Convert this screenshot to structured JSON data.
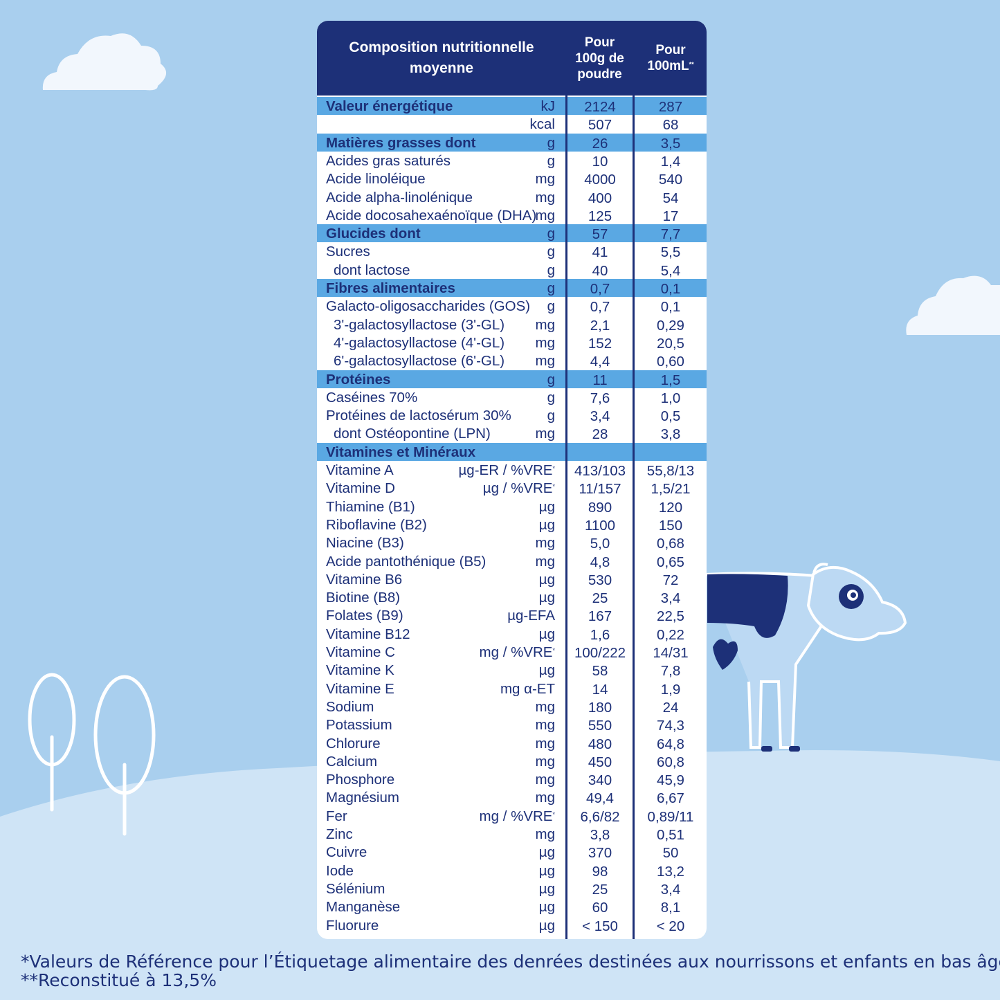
{
  "header": {
    "col_name": "Composition nutritionnelle moyenne",
    "col_powder": "Pour 100g de poudre",
    "col_ml": "Pour 100mL",
    "col_ml_mark": "**"
  },
  "rows": [
    {
      "name": "Valeur énergétique",
      "unit": "kJ",
      "v1": "2124",
      "v2": "287",
      "hl": true
    },
    {
      "name": "",
      "unit": "kcal",
      "v1": "507",
      "v2": "68"
    },
    {
      "name": "Matières grasses dont",
      "unit": "g",
      "v1": "26",
      "v2": "3,5",
      "hl": true
    },
    {
      "name": "Acides gras saturés",
      "unit": "g",
      "v1": "10",
      "v2": "1,4"
    },
    {
      "name": "Acide linoléique",
      "unit": "mg",
      "v1": "4000",
      "v2": "540"
    },
    {
      "name": "Acide alpha-linolénique",
      "unit": "mg",
      "v1": "400",
      "v2": "54"
    },
    {
      "name": "Acide docosahexaénoïque (DHA)",
      "unit": "mg",
      "v1": "125",
      "v2": "17"
    },
    {
      "name": "Glucides dont",
      "unit": "g",
      "v1": "57",
      "v2": "7,7",
      "hl": true
    },
    {
      "name": "Sucres",
      "unit": "g",
      "v1": "41",
      "v2": "5,5"
    },
    {
      "name": "dont lactose",
      "unit": "g",
      "v1": "40",
      "v2": "5,4",
      "indent": true
    },
    {
      "name": "Fibres alimentaires",
      "unit": "g",
      "v1": "0,7",
      "v2": "0,1",
      "hl": true
    },
    {
      "name": "Galacto-oligosaccharides (GOS)",
      "unit": "g",
      "v1": "0,7",
      "v2": "0,1"
    },
    {
      "name": "3'-galactosyllactose (3'-GL)",
      "unit": "mg",
      "v1": "2,1",
      "v2": "0,29",
      "indent": true
    },
    {
      "name": "4'-galactosyllactose (4'-GL)",
      "unit": "mg",
      "v1": "152",
      "v2": "20,5",
      "indent": true
    },
    {
      "name": "6'-galactosyllactose (6'-GL)",
      "unit": "mg",
      "v1": "4,4",
      "v2": "0,60",
      "indent": true
    },
    {
      "name": "Protéines",
      "unit": "g",
      "v1": "11",
      "v2": "1,5",
      "hl": true
    },
    {
      "name": "Caséines 70%",
      "unit": "g",
      "v1": "7,6",
      "v2": "1,0"
    },
    {
      "name": "Protéines de lactosérum 30%",
      "unit": "g",
      "v1": "3,4",
      "v2": "0,5"
    },
    {
      "name": "dont Ostéopontine (LPN)",
      "unit": "mg",
      "v1": "28",
      "v2": "3,8",
      "indent": true
    },
    {
      "name": "Vitamines et Minéraux",
      "unit": "",
      "v1": "",
      "v2": "",
      "hl": true
    },
    {
      "name": "Vitamine A",
      "unit": "µg-ER / %VRE*",
      "v1": "413/103",
      "v2": "55,8/13"
    },
    {
      "name": "Vitamine D",
      "unit": "µg / %VRE*",
      "v1": "11/157",
      "v2": "1,5/21"
    },
    {
      "name": "Thiamine (B1)",
      "unit": "µg",
      "v1": "890",
      "v2": "120"
    },
    {
      "name": "Riboflavine (B2)",
      "unit": "µg",
      "v1": "1100",
      "v2": "150"
    },
    {
      "name": "Niacine (B3)",
      "unit": "mg",
      "v1": "5,0",
      "v2": "0,68"
    },
    {
      "name": "Acide pantothénique (B5)",
      "unit": "mg",
      "v1": "4,8",
      "v2": "0,65"
    },
    {
      "name": "Vitamine B6",
      "unit": "µg",
      "v1": "530",
      "v2": "72"
    },
    {
      "name": "Biotine (B8)",
      "unit": "µg",
      "v1": "25",
      "v2": "3,4"
    },
    {
      "name": "Folates (B9)",
      "unit": "µg-EFA",
      "v1": "167",
      "v2": "22,5"
    },
    {
      "name": "Vitamine B12",
      "unit": "µg",
      "v1": "1,6",
      "v2": "0,22"
    },
    {
      "name": "Vitamine C",
      "unit": "mg / %VRE*",
      "v1": "100/222",
      "v2": "14/31"
    },
    {
      "name": "Vitamine K",
      "unit": "µg",
      "v1": "58",
      "v2": "7,8"
    },
    {
      "name": "Vitamine E",
      "unit": "mg α-ET",
      "v1": "14",
      "v2": "1,9"
    },
    {
      "name": "Sodium",
      "unit": "mg",
      "v1": "180",
      "v2": "24"
    },
    {
      "name": "Potassium",
      "unit": "mg",
      "v1": "550",
      "v2": "74,3"
    },
    {
      "name": "Chlorure",
      "unit": "mg",
      "v1": "480",
      "v2": "64,8"
    },
    {
      "name": "Calcium",
      "unit": "mg",
      "v1": "450",
      "v2": "60,8"
    },
    {
      "name": "Phosphore",
      "unit": "mg",
      "v1": "340",
      "v2": "45,9"
    },
    {
      "name": "Magnésium",
      "unit": "mg",
      "v1": "49,4",
      "v2": "6,67"
    },
    {
      "name": "Fer",
      "unit": "mg / %VRE*",
      "v1": "6,6/82",
      "v2": "0,89/11"
    },
    {
      "name": "Zinc",
      "unit": "mg",
      "v1": "3,8",
      "v2": "0,51"
    },
    {
      "name": "Cuivre",
      "unit": "µg",
      "v1": "370",
      "v2": "50"
    },
    {
      "name": "Iode",
      "unit": "µg",
      "v1": "98",
      "v2": "13,2"
    },
    {
      "name": "Sélénium",
      "unit": "µg",
      "v1": "25",
      "v2": "3,4"
    },
    {
      "name": "Manganèse",
      "unit": "µg",
      "v1": "60",
      "v2": "8,1"
    },
    {
      "name": "Fluorure",
      "unit": "µg",
      "v1": "< 150",
      "v2": "< 20"
    }
  ],
  "footnote": {
    "line1": "*Valeurs de Référence pour l’Étiquetage alimentaire des denrées destinées aux nourrissons et enfants en bas âge -",
    "line2": "**Reconstitué à 13,5%"
  },
  "colors": {
    "sky": "#a9cfee",
    "hill": "#cfe4f6",
    "navy": "#1d3078",
    "highlight": "#5aa8e3"
  },
  "icons": [
    "cloud-icon",
    "tree-icon",
    "cow-icon"
  ]
}
